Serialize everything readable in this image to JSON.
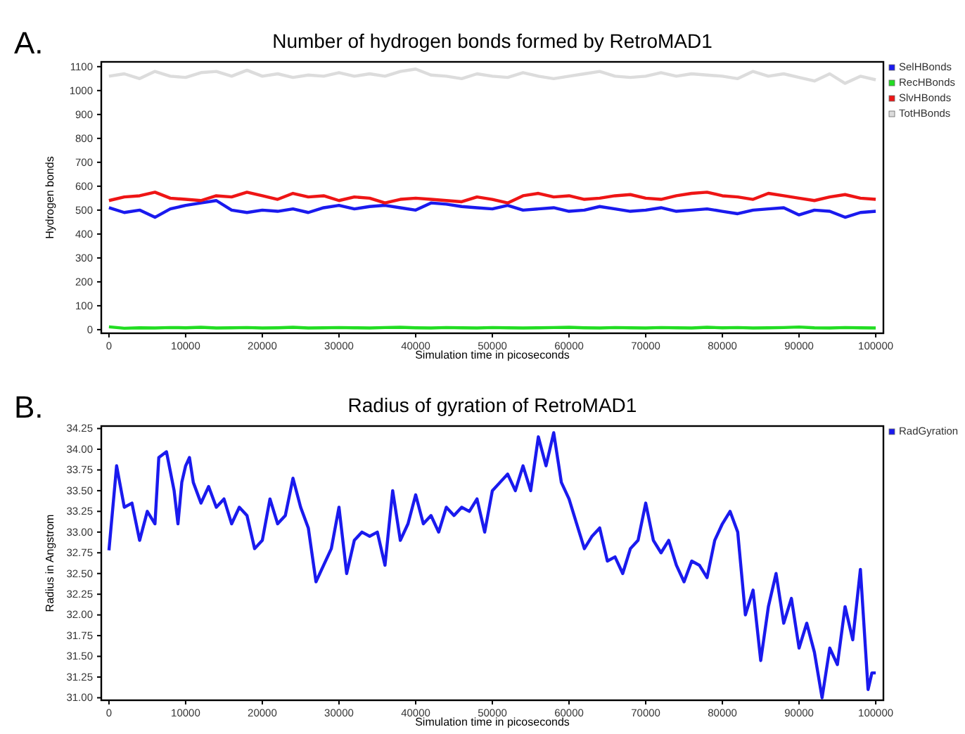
{
  "chart_data": [
    {
      "type": "line",
      "title": "Number of hydrogen bonds formed by RetroMAD1",
      "xlabel": "Simulation time in picoseconds",
      "ylabel": "Hydrogen bonds",
      "annotations": [
        "A."
      ],
      "legend": "right",
      "grid": false,
      "marker": "none",
      "line_style": "solid",
      "xlim": [
        -1000,
        101000
      ],
      "xticks": [
        0,
        10000,
        20000,
        30000,
        40000,
        50000,
        60000,
        70000,
        80000,
        90000,
        100000
      ],
      "ylim": [
        -15,
        1120
      ],
      "yticks": [
        0,
        100,
        200,
        300,
        400,
        500,
        600,
        700,
        800,
        900,
        1000,
        1100
      ],
      "x": [
        0,
        2000,
        4000,
        6000,
        8000,
        10000,
        12000,
        14000,
        16000,
        18000,
        20000,
        22000,
        24000,
        26000,
        28000,
        30000,
        32000,
        34000,
        36000,
        38000,
        40000,
        42000,
        44000,
        46000,
        48000,
        50000,
        52000,
        54000,
        56000,
        58000,
        60000,
        62000,
        64000,
        66000,
        68000,
        70000,
        72000,
        74000,
        76000,
        78000,
        80000,
        82000,
        84000,
        86000,
        88000,
        90000,
        92000,
        94000,
        96000,
        98000,
        100000
      ],
      "series": [
        {
          "name": "SelHBonds",
          "color": "#1a1aee",
          "values": [
            510,
            490,
            500,
            470,
            505,
            520,
            530,
            540,
            500,
            490,
            500,
            495,
            505,
            490,
            510,
            520,
            505,
            515,
            520,
            510,
            500,
            530,
            525,
            515,
            510,
            505,
            520,
            500,
            505,
            510,
            495,
            500,
            515,
            505,
            495,
            500,
            510,
            495,
            500,
            505,
            495,
            485,
            500,
            505,
            510,
            480,
            500,
            495,
            470,
            490,
            495
          ]
        },
        {
          "name": "RecHBonds",
          "color": "#22dd22",
          "values": [
            12,
            6,
            8,
            7,
            9,
            8,
            10,
            7,
            8,
            9,
            7,
            8,
            10,
            7,
            8,
            9,
            8,
            7,
            9,
            10,
            8,
            7,
            9,
            8,
            7,
            9,
            8,
            7,
            8,
            9,
            10,
            8,
            7,
            9,
            8,
            7,
            9,
            8,
            7,
            10,
            8,
            9,
            7,
            8,
            9,
            11,
            8,
            7,
            9,
            8,
            7
          ]
        },
        {
          "name": "SlvHBonds",
          "color": "#ee1515",
          "values": [
            540,
            555,
            560,
            575,
            550,
            545,
            540,
            560,
            555,
            575,
            560,
            545,
            570,
            555,
            560,
            540,
            555,
            550,
            530,
            545,
            550,
            545,
            540,
            535,
            555,
            545,
            530,
            560,
            570,
            555,
            560,
            545,
            550,
            560,
            565,
            550,
            545,
            560,
            570,
            575,
            560,
            555,
            545,
            570,
            560,
            550,
            540,
            555,
            565,
            550,
            545
          ]
        },
        {
          "name": "TotHBonds",
          "color": "#dcdcdc",
          "values": [
            1060,
            1070,
            1050,
            1080,
            1060,
            1055,
            1075,
            1080,
            1060,
            1085,
            1060,
            1070,
            1055,
            1065,
            1060,
            1075,
            1060,
            1070,
            1060,
            1080,
            1090,
            1065,
            1060,
            1050,
            1070,
            1060,
            1055,
            1075,
            1060,
            1050,
            1060,
            1070,
            1080,
            1060,
            1055,
            1060,
            1075,
            1060,
            1070,
            1065,
            1060,
            1050,
            1080,
            1060,
            1070,
            1055,
            1040,
            1070,
            1030,
            1060,
            1045
          ]
        }
      ]
    },
    {
      "type": "line",
      "title": "Radius of gyration of RetroMAD1",
      "xlabel": "Simulation time in picoseconds",
      "ylabel": "Radius in Angstrom",
      "annotations": [
        "B."
      ],
      "legend": "right",
      "grid": false,
      "marker": "none",
      "line_style": "solid",
      "xlim": [
        -1000,
        101000
      ],
      "xticks": [
        0,
        10000,
        20000,
        30000,
        40000,
        50000,
        60000,
        70000,
        80000,
        90000,
        100000
      ],
      "ylim": [
        30.97,
        34.28
      ],
      "yticks": [
        {
          "value": 31,
          "label": "31.00"
        },
        31.25,
        {
          "value": 31.5,
          "label": "31.50"
        },
        31.75,
        {
          "value": 32,
          "label": "32.00"
        },
        32.25,
        {
          "value": 32.5,
          "label": "32.50"
        },
        32.75,
        {
          "value": 33,
          "label": "33.00"
        },
        33.25,
        {
          "value": 33.5,
          "label": "33.50"
        },
        33.75,
        {
          "value": 34,
          "label": "34.00"
        },
        34.25
      ],
      "x": [
        0,
        1000,
        2000,
        3000,
        4000,
        5000,
        6000,
        6500,
        7500,
        8500,
        9000,
        9500,
        10000,
        10500,
        11000,
        12000,
        13000,
        14000,
        15000,
        16000,
        17000,
        18000,
        19000,
        20000,
        21000,
        22000,
        23000,
        24000,
        25000,
        26000,
        27000,
        28000,
        29000,
        30000,
        31000,
        32000,
        33000,
        34000,
        35000,
        36000,
        37000,
        38000,
        39000,
        40000,
        41000,
        42000,
        43000,
        44000,
        45000,
        46000,
        47000,
        48000,
        49000,
        50000,
        51000,
        52000,
        53000,
        54000,
        55000,
        56000,
        57000,
        58000,
        59000,
        60000,
        61000,
        62000,
        63000,
        64000,
        65000,
        66000,
        67000,
        68000,
        69000,
        70000,
        71000,
        72000,
        73000,
        74000,
        75000,
        76000,
        77000,
        78000,
        79000,
        80000,
        81000,
        82000,
        83000,
        84000,
        85000,
        86000,
        87000,
        88000,
        89000,
        90000,
        91000,
        92000,
        93000,
        94000,
        95000,
        96000,
        97000,
        98000,
        99000,
        99500,
        100000
      ],
      "series": [
        {
          "name": "RadGyration",
          "color": "#1a1aee",
          "values": [
            32.78,
            33.8,
            33.3,
            33.35,
            32.9,
            33.25,
            33.1,
            33.9,
            33.97,
            33.5,
            33.1,
            33.6,
            33.8,
            33.9,
            33.6,
            33.35,
            33.55,
            33.3,
            33.4,
            33.1,
            33.3,
            33.2,
            32.8,
            32.9,
            33.4,
            33.1,
            33.2,
            33.65,
            33.3,
            33.05,
            32.4,
            32.6,
            32.8,
            33.3,
            32.5,
            32.9,
            33.0,
            32.95,
            33.0,
            32.6,
            33.5,
            32.9,
            33.1,
            33.45,
            33.1,
            33.2,
            33.0,
            33.3,
            33.2,
            33.3,
            33.25,
            33.4,
            33.0,
            33.5,
            33.6,
            33.7,
            33.5,
            33.8,
            33.5,
            34.15,
            33.8,
            34.2,
            33.6,
            33.4,
            33.1,
            32.8,
            32.95,
            33.05,
            32.65,
            32.7,
            32.5,
            32.8,
            32.9,
            33.35,
            32.9,
            32.75,
            32.9,
            32.6,
            32.4,
            32.65,
            32.6,
            32.45,
            32.9,
            33.1,
            33.25,
            33.0,
            32.0,
            32.3,
            31.45,
            32.1,
            32.5,
            31.9,
            32.2,
            31.6,
            31.9,
            31.55,
            31.0,
            31.6,
            31.4,
            32.1,
            31.7,
            32.55,
            31.1,
            31.3,
            31.3
          ]
        }
      ]
    }
  ]
}
